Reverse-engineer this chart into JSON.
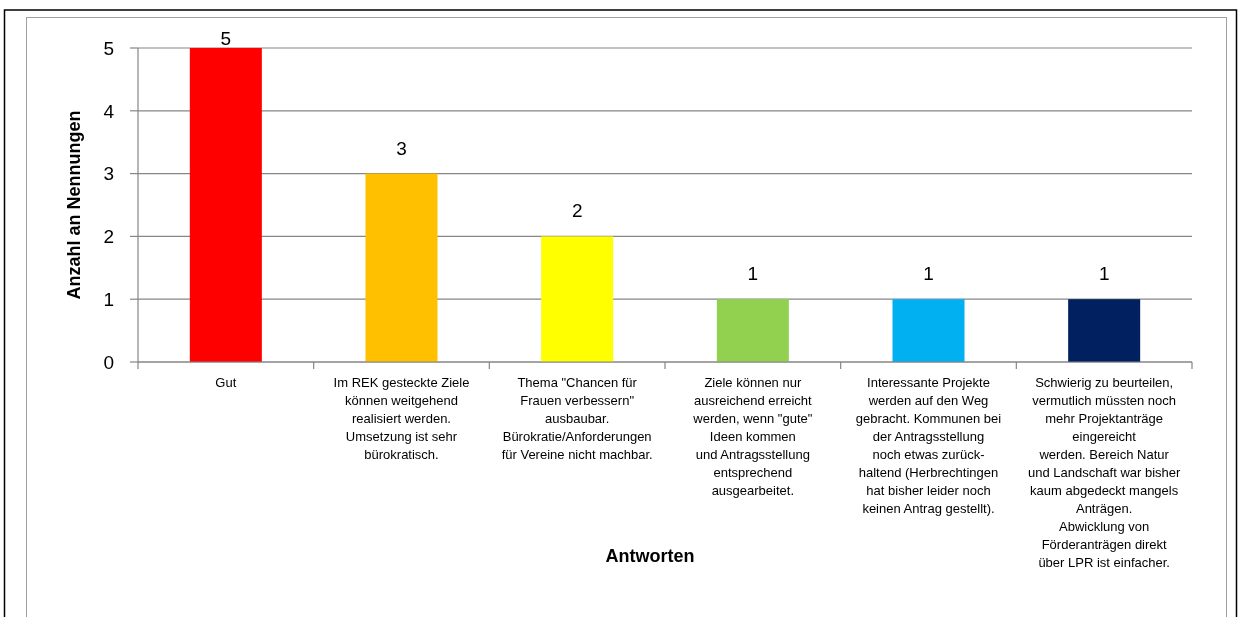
{
  "chart_data": {
    "type": "bar",
    "xlabel": "Antworten",
    "ylabel": "Anzahl an Nennungen",
    "categories": [
      "Gut",
      "Im REK gesteckte Ziele\nkönnen weitgehend\nrealisiert werden.\nUmsetzung ist sehr\nbürokratisch.",
      "Thema \"Chancen für\nFrauen verbessern\"\nausbaubar.\nBürokratie/Anforderungen\nfür Vereine nicht machbar.",
      "Ziele können nur\nausreichend erreicht\nwerden, wenn \"gute\"\nIdeen kommen\nund Antragsstellung\nentsprechend\nausgearbeitet.",
      "Interessante Projekte\nwerden auf den Weg\ngebracht. Kommunen bei\nder Antragsstellung\nnoch etwas zurück-\nhaltend (Herbrechtingen\nhat bisher leider noch\nkeinen Antrag gestellt).",
      "Schwierig zu beurteilen,\nvermutlich müssten noch\nmehr Projektanträge\neingereicht\nwerden. Bereich Natur\nund Landschaft war bisher\nkaum abgedeckt mangels\nAnträgen.\nAbwicklung von\nFörderanträgen direkt\nüber LPR ist einfacher."
    ],
    "values": [
      5,
      3,
      2,
      1,
      1,
      1
    ],
    "colors": [
      "#ff0000",
      "#ffc000",
      "#ffff00",
      "#92d050",
      "#00b0f0",
      "#002060"
    ],
    "ylim": [
      0,
      5
    ],
    "yticks": [
      0,
      1,
      2,
      3,
      4,
      5
    ],
    "grid": "y",
    "data_labels": true
  }
}
